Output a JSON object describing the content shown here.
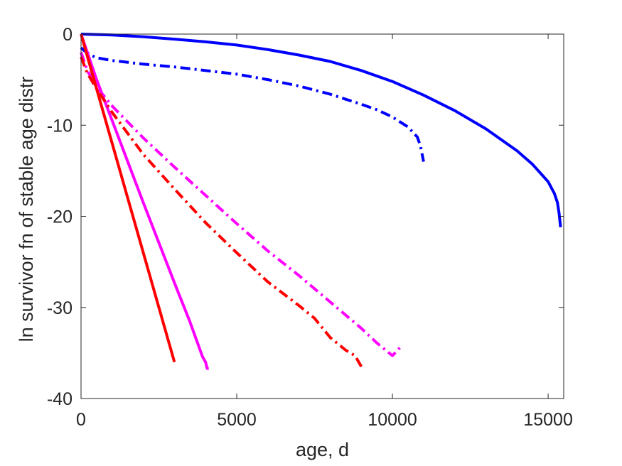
{
  "chart_data": {
    "type": "line",
    "xlabel": "age, d",
    "ylabel": "ln survivor fn of stable age distr",
    "xlim": [
      0,
      15500
    ],
    "ylim": [
      -40,
      0
    ],
    "xticks": [
      0,
      5000,
      10000,
      15000
    ],
    "yticks": [
      0,
      -10,
      -20,
      -30,
      -40
    ],
    "grid": false,
    "legend": "none",
    "series": [
      {
        "color": "#0000ff",
        "style": "solid",
        "x": [
          0,
          1000,
          2000,
          3000,
          4000,
          5000,
          6000,
          7000,
          8000,
          9000,
          10000,
          11000,
          12000,
          13000,
          14000,
          14500,
          15000,
          15200,
          15300,
          15350,
          15400
        ],
        "y": [
          0,
          -0.1,
          -0.3,
          -0.55,
          -0.85,
          -1.2,
          -1.7,
          -2.3,
          -3.0,
          -4.0,
          -5.2,
          -6.7,
          -8.4,
          -10.4,
          -12.8,
          -14.3,
          -16.2,
          -17.5,
          -18.5,
          -19.6,
          -21.2
        ]
      },
      {
        "color": "#0000ff",
        "style": "dashdot",
        "x": [
          0,
          100,
          300,
          500,
          1000,
          2000,
          3000,
          4000,
          5000,
          6000,
          7000,
          8000,
          9000,
          9500,
          10000,
          10500,
          10800,
          10900,
          11000
        ],
        "y": [
          -1.5,
          -1.8,
          -2.3,
          -2.6,
          -2.9,
          -3.3,
          -3.6,
          -4.0,
          -4.4,
          -5.0,
          -5.7,
          -6.6,
          -7.7,
          -8.3,
          -9.1,
          -10.2,
          -11.3,
          -12.3,
          -14.0
        ]
      },
      {
        "color": "#ff00ff",
        "style": "solid",
        "x": [
          0,
          500,
          1000,
          2000,
          3000,
          3500,
          3900,
          4000,
          4050,
          4100
        ],
        "y": [
          0,
          -5.0,
          -9.5,
          -18.5,
          -27.3,
          -31.6,
          -35.4,
          -36.0,
          -36.7,
          -36.7
        ]
      },
      {
        "color": "#ff00ff",
        "style": "dashdot",
        "x": [
          0,
          200,
          500,
          1000,
          2000,
          3000,
          4000,
          5000,
          6000,
          7000,
          8000,
          9000,
          9500,
          10000,
          10300
        ],
        "y": [
          -2.0,
          -4.0,
          -5.8,
          -7.9,
          -11.4,
          -14.6,
          -17.7,
          -20.8,
          -23.8,
          -26.5,
          -29.4,
          -32.3,
          -33.9,
          -35.3,
          -34.2
        ]
      },
      {
        "color": "#ff0000",
        "style": "solid",
        "x": [
          0,
          500,
          1000,
          1500,
          2000,
          2500,
          3000
        ],
        "y": [
          0,
          -6.0,
          -12.0,
          -18.0,
          -24.0,
          -30.0,
          -36.0
        ]
      },
      {
        "color": "#ff0000",
        "style": "dashdot",
        "x": [
          0,
          200,
          500,
          1000,
          2000,
          3000,
          4000,
          5000,
          6000,
          7000,
          7500,
          8000,
          8500,
          8800,
          9000
        ],
        "y": [
          -2.5,
          -4.3,
          -6.0,
          -8.6,
          -13.2,
          -17.0,
          -20.7,
          -24.0,
          -27.2,
          -29.8,
          -31.2,
          -33.3,
          -34.7,
          -35.3,
          -36.5
        ]
      }
    ]
  }
}
